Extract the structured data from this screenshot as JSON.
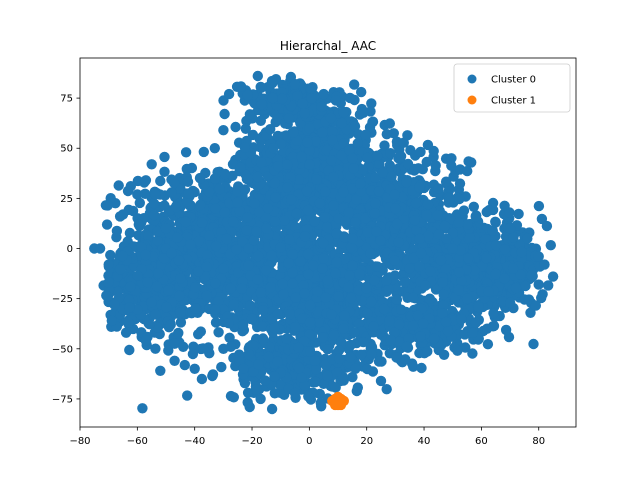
{
  "chart_data": {
    "type": "scatter",
    "title": "Hierarchal_ AAC",
    "xlabel": "",
    "ylabel": "",
    "xlim": [
      -80,
      93
    ],
    "ylim": [
      -89,
      95
    ],
    "xticks": [
      -80,
      -60,
      -40,
      -20,
      0,
      20,
      40,
      60,
      80
    ],
    "yticks": [
      -75,
      -50,
      -25,
      0,
      25,
      50,
      75
    ],
    "grid": false,
    "legend": {
      "position": "top-right"
    },
    "series": [
      {
        "name": "Cluster 0",
        "color": "#1f77b4",
        "regions": [
          {
            "cx": -35,
            "cy": 0,
            "rx": 30,
            "ry": 38,
            "n": 1000
          },
          {
            "cx": 0,
            "cy": 40,
            "rx": 22,
            "ry": 42,
            "n": 900
          },
          {
            "cx": 5,
            "cy": -25,
            "rx": 30,
            "ry": 28,
            "n": 800
          },
          {
            "cx": 60,
            "cy": -10,
            "rx": 22,
            "ry": 22,
            "n": 600
          },
          {
            "cx": 30,
            "cy": 15,
            "rx": 25,
            "ry": 35,
            "n": 600
          },
          {
            "cx": -5,
            "cy": -60,
            "rx": 25,
            "ry": 15,
            "n": 250
          },
          {
            "cx": -10,
            "cy": 75,
            "rx": 15,
            "ry": 8,
            "n": 100
          },
          {
            "cx": -55,
            "cy": -20,
            "rx": 18,
            "ry": 22,
            "n": 300
          },
          {
            "cx": 40,
            "cy": -40,
            "rx": 18,
            "ry": 14,
            "n": 200
          }
        ],
        "points": [
          [
            -75,
            0
          ],
          [
            -73,
            0
          ],
          [
            -66,
            16
          ],
          [
            -70,
            -8
          ],
          [
            -70,
            -17
          ],
          [
            -68,
            -28
          ],
          [
            -63,
            -37
          ],
          [
            -57,
            -46
          ],
          [
            -47,
            -56
          ],
          [
            -40,
            -60
          ],
          [
            -52,
            -61
          ],
          [
            -44,
            -49
          ],
          [
            -30,
            -50
          ],
          [
            -23,
            -60
          ],
          [
            -17,
            -75
          ],
          [
            -13,
            -80
          ],
          [
            -5,
            -72
          ],
          [
            4,
            -77
          ],
          [
            10,
            -76
          ],
          [
            25,
            -66
          ],
          [
            18,
            -53
          ],
          [
            34,
            -49
          ],
          [
            47,
            -53
          ],
          [
            57,
            -42
          ],
          [
            70,
            -27
          ],
          [
            80,
            -18
          ],
          [
            85,
            -14
          ],
          [
            82,
            -8
          ],
          [
            80,
            -4
          ],
          [
            76,
            5
          ],
          [
            70,
            10
          ],
          [
            65,
            13
          ],
          [
            58,
            16
          ],
          [
            49,
            25
          ],
          [
            45,
            30
          ],
          [
            38,
            40
          ],
          [
            32,
            46
          ],
          [
            27,
            57
          ],
          [
            22,
            63
          ],
          [
            12,
            68
          ],
          [
            5,
            77
          ],
          [
            -5,
            82
          ],
          [
            -18,
            86
          ],
          [
            -28,
            77
          ],
          [
            -30,
            59
          ],
          [
            -33,
            50
          ],
          [
            -43,
            48
          ],
          [
            -55,
            42
          ],
          [
            -60,
            27
          ],
          [
            -65,
            17
          ],
          [
            -57,
            34
          ],
          [
            -48,
            28
          ],
          [
            -38,
            35
          ],
          [
            -25,
            23
          ],
          [
            -30,
            -10
          ],
          [
            -45,
            -15
          ],
          [
            -50,
            10
          ],
          [
            -15,
            10
          ],
          [
            -20,
            -35
          ],
          [
            20,
            -20
          ],
          [
            35,
            -10
          ],
          [
            55,
            -25
          ],
          [
            68,
            -15
          ],
          [
            62,
            -40
          ],
          [
            42,
            -25
          ],
          [
            50,
            0
          ],
          [
            30,
            20
          ],
          [
            15,
            5
          ],
          [
            15,
            45
          ],
          [
            5,
            -5
          ],
          [
            0,
            60
          ],
          [
            -8,
            -45
          ]
        ]
      },
      {
        "name": "Cluster 1",
        "color": "#ff7f0e",
        "points": [
          [
            9,
            -75
          ],
          [
            10,
            -76
          ],
          [
            11,
            -77
          ],
          [
            10,
            -78
          ],
          [
            11,
            -78
          ],
          [
            9,
            -77
          ],
          [
            10,
            -74
          ],
          [
            8,
            -76
          ],
          [
            11,
            -75
          ],
          [
            10,
            -77
          ],
          [
            9,
            -78
          ],
          [
            12,
            -76
          ]
        ]
      }
    ]
  }
}
